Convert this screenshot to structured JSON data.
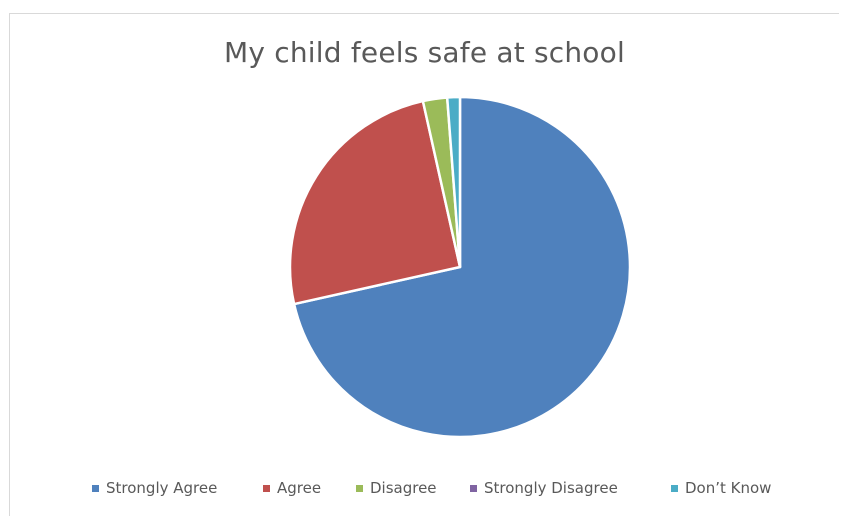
{
  "chart_data": {
    "type": "pie",
    "title": "My child feels safe at school",
    "categories": [
      "Strongly Agree",
      "Agree",
      "Disagree",
      "Strongly Disagree",
      "Don’t Know"
    ],
    "values": [
      71.5,
      25,
      2.3,
      0,
      1.2
    ],
    "colors": [
      "#4f81bd",
      "#c0504d",
      "#9bbb59",
      "#8064a2",
      "#4bacc6"
    ],
    "legend_position": "bottom",
    "start_angle_deg": 0,
    "direction": "clockwise"
  }
}
